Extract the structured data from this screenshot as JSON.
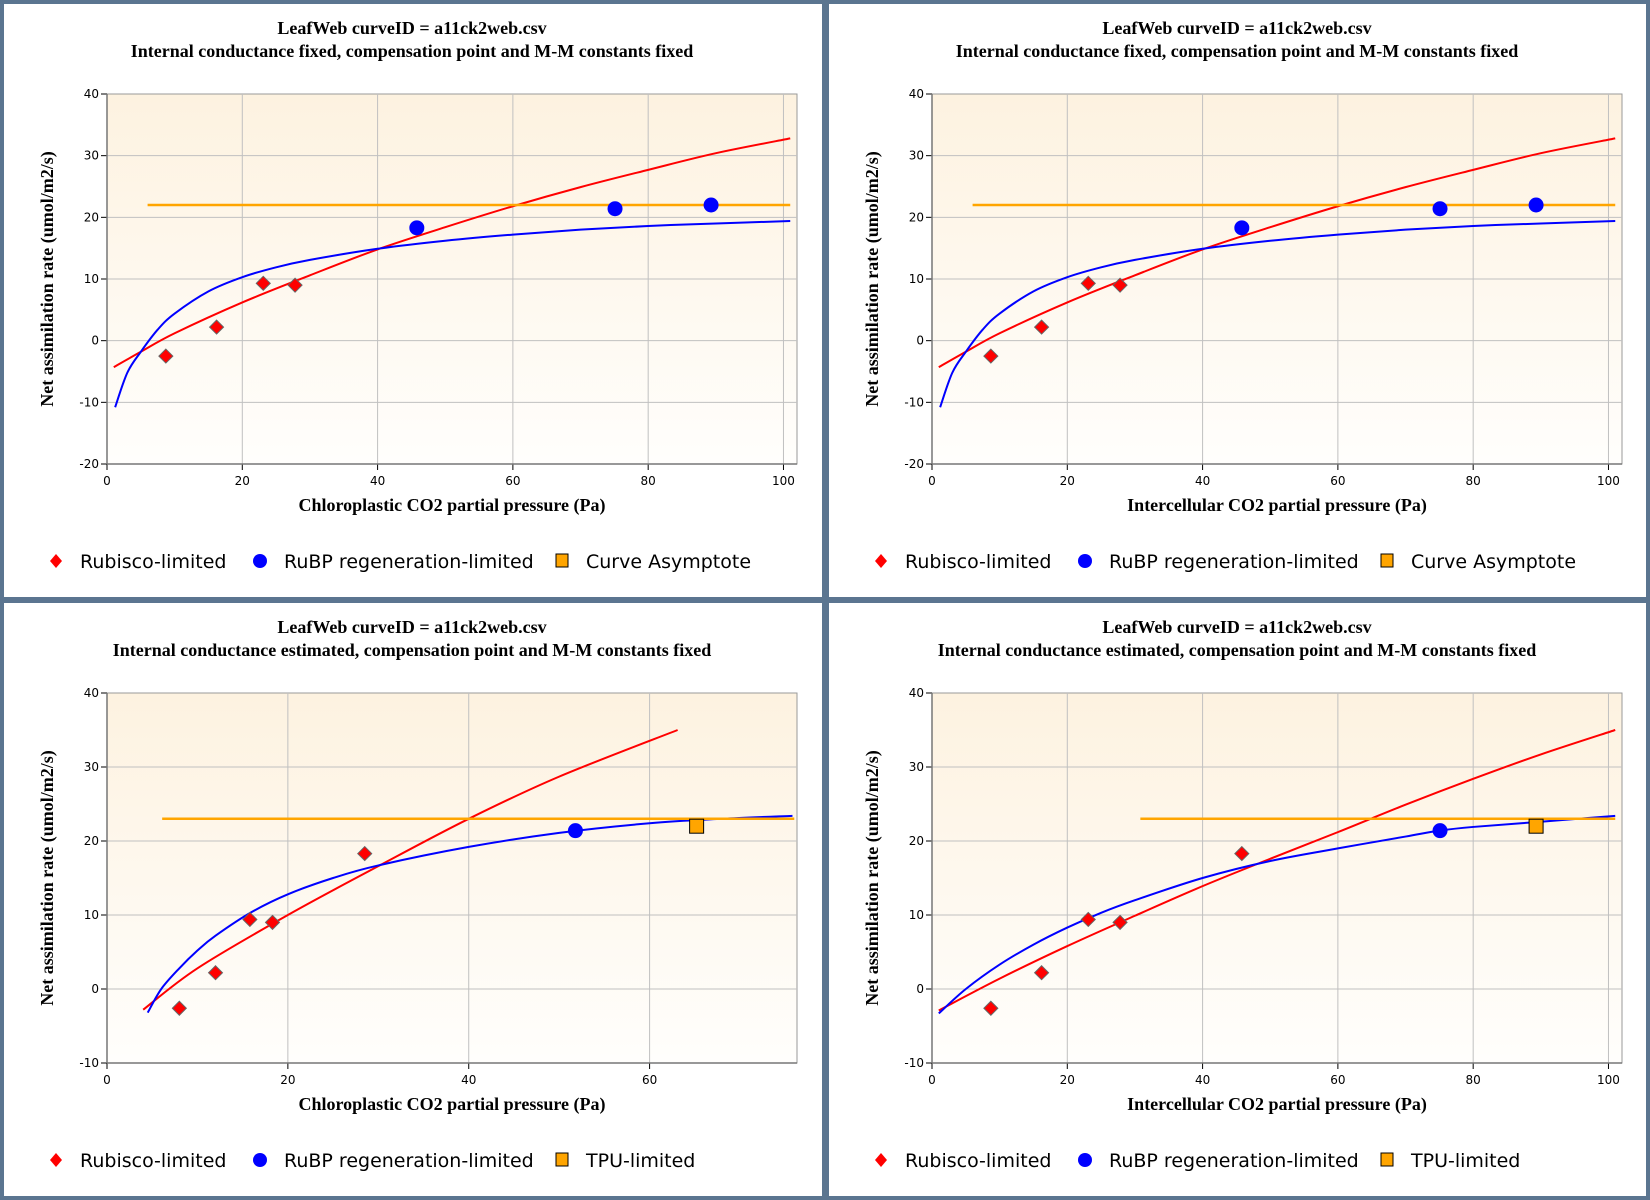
{
  "colors": {
    "rubisco": "#ff0000",
    "rubp": "#0000ff",
    "asymptote": "#ffa500",
    "border": "#5b7590",
    "grid": "#c0c0c0",
    "plot_bg_top": "#fdf2e0",
    "plot_bg_bottom": "#fffefc"
  },
  "chart_data": [
    {
      "type": "scatter",
      "id": "top-left",
      "title": "LeafWeb curveID = a11ck2web.csv",
      "subtitle": "Internal conductance fixed, compensation point and M-M constants fixed",
      "xlabel": "Chloroplastic CO2 partial pressure (Pa)",
      "ylabel": "Net assimilation rate (umol/m2/s)",
      "xlim": [
        0,
        102
      ],
      "ylim": [
        -20,
        40
      ],
      "xticks": [
        0,
        20,
        40,
        60,
        80,
        100
      ],
      "yticks": [
        -20,
        -10,
        0,
        10,
        20,
        30,
        40
      ],
      "grid": true,
      "legend_position": "bottom",
      "legend": [
        {
          "label": "Rubisco-limited",
          "marker": "diamond",
          "color": "#ff0000"
        },
        {
          "label": "RuBP regeneration-limited",
          "marker": "circle",
          "color": "#0000ff"
        },
        {
          "label": "Curve Asymptote",
          "marker": "square",
          "color": "#ffa500"
        }
      ],
      "series": [
        {
          "name": "Rubisco-limited",
          "kind": "points",
          "marker": "diamond",
          "color": "#ff0000",
          "x": [
            8.7,
            16.2,
            23.1,
            27.8
          ],
          "y": [
            -2.5,
            2.2,
            9.3,
            9.0
          ]
        },
        {
          "name": "RuBP regeneration-limited",
          "kind": "points",
          "marker": "circle",
          "color": "#0000ff",
          "x": [
            45.8,
            75.1,
            89.3
          ],
          "y": [
            18.3,
            21.4,
            22.0
          ]
        },
        {
          "name": "Rubisco-limited fit",
          "kind": "line",
          "color": "#ff0000",
          "x": [
            1,
            5,
            10,
            20,
            30,
            40,
            50,
            60,
            70,
            80,
            90,
            101
          ],
          "y": [
            -4.3,
            -1.8,
            1.2,
            6.2,
            10.6,
            14.8,
            18.4,
            21.8,
            24.9,
            27.7,
            30.4,
            32.8
          ]
        },
        {
          "name": "RuBP regeneration-limited fit",
          "kind": "line",
          "color": "#0000ff",
          "x": [
            1.2,
            3,
            5,
            7.5,
            10,
            15,
            20,
            25,
            30,
            40,
            50,
            60,
            70,
            80,
            90,
            101
          ],
          "y": [
            -10.8,
            -5.2,
            -1.8,
            1.8,
            4.4,
            8.0,
            10.3,
            11.9,
            13.1,
            14.9,
            16.2,
            17.2,
            18.0,
            18.6,
            19.0,
            19.4
          ]
        },
        {
          "name": "Curve Asymptote",
          "kind": "line",
          "color": "#ffa500",
          "x": [
            6.0,
            101
          ],
          "y": [
            22.0,
            22.0
          ]
        }
      ]
    },
    {
      "type": "scatter",
      "id": "top-right",
      "title": "LeafWeb curveID = a11ck2web.csv",
      "subtitle": "Internal conductance fixed, compensation point and M-M constants fixed",
      "xlabel": "Intercellular CO2 partial pressure (Pa)",
      "ylabel": "Net assimilation rate (umol/m2/s)",
      "xlim": [
        0,
        102
      ],
      "ylim": [
        -20,
        40
      ],
      "xticks": [
        0,
        20,
        40,
        60,
        80,
        100
      ],
      "yticks": [
        -20,
        -10,
        0,
        10,
        20,
        30,
        40
      ],
      "grid": true,
      "legend_position": "bottom",
      "legend": [
        {
          "label": "Rubisco-limited",
          "marker": "diamond",
          "color": "#ff0000"
        },
        {
          "label": "RuBP regeneration-limited",
          "marker": "circle",
          "color": "#0000ff"
        },
        {
          "label": "Curve Asymptote",
          "marker": "square",
          "color": "#ffa500"
        }
      ],
      "series": [
        {
          "name": "Rubisco-limited",
          "kind": "points",
          "marker": "diamond",
          "color": "#ff0000",
          "x": [
            8.7,
            16.2,
            23.1,
            27.8
          ],
          "y": [
            -2.5,
            2.2,
            9.3,
            9.0
          ]
        },
        {
          "name": "RuBP regeneration-limited",
          "kind": "points",
          "marker": "circle",
          "color": "#0000ff",
          "x": [
            45.8,
            75.1,
            89.3
          ],
          "y": [
            18.3,
            21.4,
            22.0
          ]
        },
        {
          "name": "Rubisco-limited fit",
          "kind": "line",
          "color": "#ff0000",
          "x": [
            1,
            5,
            10,
            20,
            30,
            40,
            50,
            60,
            70,
            80,
            90,
            101
          ],
          "y": [
            -4.3,
            -1.8,
            1.2,
            6.2,
            10.6,
            14.8,
            18.4,
            21.8,
            24.9,
            27.7,
            30.4,
            32.8
          ]
        },
        {
          "name": "RuBP regeneration-limited fit",
          "kind": "line",
          "color": "#0000ff",
          "x": [
            1.2,
            3,
            5,
            7.5,
            10,
            15,
            20,
            25,
            30,
            40,
            50,
            60,
            70,
            80,
            90,
            101
          ],
          "y": [
            -10.8,
            -5.2,
            -1.8,
            1.8,
            4.4,
            8.0,
            10.3,
            11.9,
            13.1,
            14.9,
            16.2,
            17.2,
            18.0,
            18.6,
            19.0,
            19.4
          ]
        },
        {
          "name": "Curve Asymptote",
          "kind": "line",
          "color": "#ffa500",
          "x": [
            6.0,
            101
          ],
          "y": [
            22.0,
            22.0
          ]
        }
      ]
    },
    {
      "type": "scatter",
      "id": "bottom-left",
      "title": "LeafWeb curveID = a11ck2web.csv",
      "subtitle": "Internal conductance estimated, compensation point and M-M constants fixed",
      "xlabel": "Chloroplastic CO2 partial pressure (Pa)",
      "ylabel": "Net assimilation rate (umol/m2/s)",
      "xlim": [
        0,
        76.3
      ],
      "ylim": [
        -10,
        40
      ],
      "xticks": [
        0,
        20,
        40,
        60
      ],
      "yticks": [
        -10,
        0,
        10,
        20,
        30,
        40
      ],
      "grid": true,
      "legend_position": "bottom",
      "legend": [
        {
          "label": "Rubisco-limited",
          "marker": "diamond",
          "color": "#ff0000"
        },
        {
          "label": "RuBP regeneration-limited",
          "marker": "circle",
          "color": "#0000ff"
        },
        {
          "label": "TPU-limited",
          "marker": "square",
          "color": "#ffa500"
        }
      ],
      "series": [
        {
          "name": "Rubisco-limited",
          "kind": "points",
          "marker": "diamond",
          "color": "#ff0000",
          "x": [
            8.0,
            12.0,
            15.8,
            18.3,
            28.5
          ],
          "y": [
            -2.6,
            2.2,
            9.4,
            9.0,
            18.3
          ]
        },
        {
          "name": "RuBP regeneration-limited",
          "kind": "points",
          "marker": "circle",
          "color": "#0000ff",
          "x": [
            51.8
          ],
          "y": [
            21.4
          ]
        },
        {
          "name": "TPU-limited",
          "kind": "points",
          "marker": "square",
          "color": "#ffa500",
          "x": [
            65.2
          ],
          "y": [
            22.0
          ]
        },
        {
          "name": "Rubisco-limited fit",
          "kind": "line",
          "color": "#ff0000",
          "x": [
            4,
            10,
            20,
            30,
            40,
            50,
            63.1
          ],
          "y": [
            -2.8,
            2.8,
            10.0,
            16.6,
            23.0,
            28.7,
            35.0
          ]
        },
        {
          "name": "RuBP regeneration-limited fit",
          "kind": "line",
          "color": "#0000ff",
          "x": [
            4.5,
            6,
            8,
            10,
            12,
            16,
            20,
            25,
            30,
            40,
            50,
            60,
            68,
            75.8
          ],
          "y": [
            -3.2,
            0.0,
            2.8,
            5.2,
            7.2,
            10.4,
            12.8,
            15.0,
            16.7,
            19.2,
            21.1,
            22.4,
            23.0,
            23.4
          ]
        },
        {
          "name": "Curve Asymptote",
          "kind": "line",
          "color": "#ffa500",
          "x": [
            6.1,
            76
          ],
          "y": [
            23.0,
            23.0
          ]
        }
      ]
    },
    {
      "type": "scatter",
      "id": "bottom-right",
      "title": "LeafWeb curveID = a11ck2web.csv",
      "subtitle": "Internal conductance estimated, compensation point and M-M constants fixed",
      "xlabel": "Intercellular CO2 partial pressure (Pa)",
      "ylabel": "Net assimilation rate (umol/m2/s)",
      "xlim": [
        0,
        102
      ],
      "ylim": [
        -10,
        40
      ],
      "xticks": [
        0,
        20,
        40,
        60,
        80,
        100
      ],
      "yticks": [
        -10,
        0,
        10,
        20,
        30,
        40
      ],
      "grid": true,
      "legend_position": "bottom",
      "legend": [
        {
          "label": "Rubisco-limited",
          "marker": "diamond",
          "color": "#ff0000"
        },
        {
          "label": "RuBP regeneration-limited",
          "marker": "circle",
          "color": "#0000ff"
        },
        {
          "label": "TPU-limited",
          "marker": "square",
          "color": "#ffa500"
        }
      ],
      "series": [
        {
          "name": "Rubisco-limited",
          "kind": "points",
          "marker": "diamond",
          "color": "#ff0000",
          "x": [
            8.7,
            16.2,
            23.1,
            27.8,
            45.8
          ],
          "y": [
            -2.6,
            2.2,
            9.4,
            9.0,
            18.3
          ]
        },
        {
          "name": "RuBP regeneration-limited",
          "kind": "points",
          "marker": "circle",
          "color": "#0000ff",
          "x": [
            75.1
          ],
          "y": [
            21.4
          ]
        },
        {
          "name": "TPU-limited",
          "kind": "points",
          "marker": "square",
          "color": "#ffa500",
          "x": [
            89.3
          ],
          "y": [
            22.0
          ]
        },
        {
          "name": "Rubisco-limited fit",
          "kind": "line",
          "color": "#ff0000",
          "x": [
            1,
            10,
            20,
            30,
            40,
            50,
            60,
            70,
            80,
            90,
            101
          ],
          "y": [
            -2.9,
            1.4,
            5.8,
            9.9,
            13.9,
            17.6,
            21.2,
            24.9,
            28.4,
            31.7,
            35.0
          ]
        },
        {
          "name": "RuBP regeneration-limited fit",
          "kind": "line",
          "color": "#0000ff",
          "x": [
            1,
            5,
            10,
            15,
            20,
            25,
            30,
            40,
            50,
            60,
            70,
            75,
            80,
            90,
            101
          ],
          "y": [
            -3.3,
            0.0,
            3.3,
            6.0,
            8.3,
            10.3,
            12.0,
            15.0,
            17.3,
            19.0,
            20.6,
            21.4,
            21.9,
            22.6,
            23.4
          ]
        },
        {
          "name": "Curve Asymptote",
          "kind": "line",
          "color": "#ffa500",
          "x": [
            30.8,
            101
          ],
          "y": [
            23.0,
            23.0
          ]
        }
      ]
    }
  ]
}
